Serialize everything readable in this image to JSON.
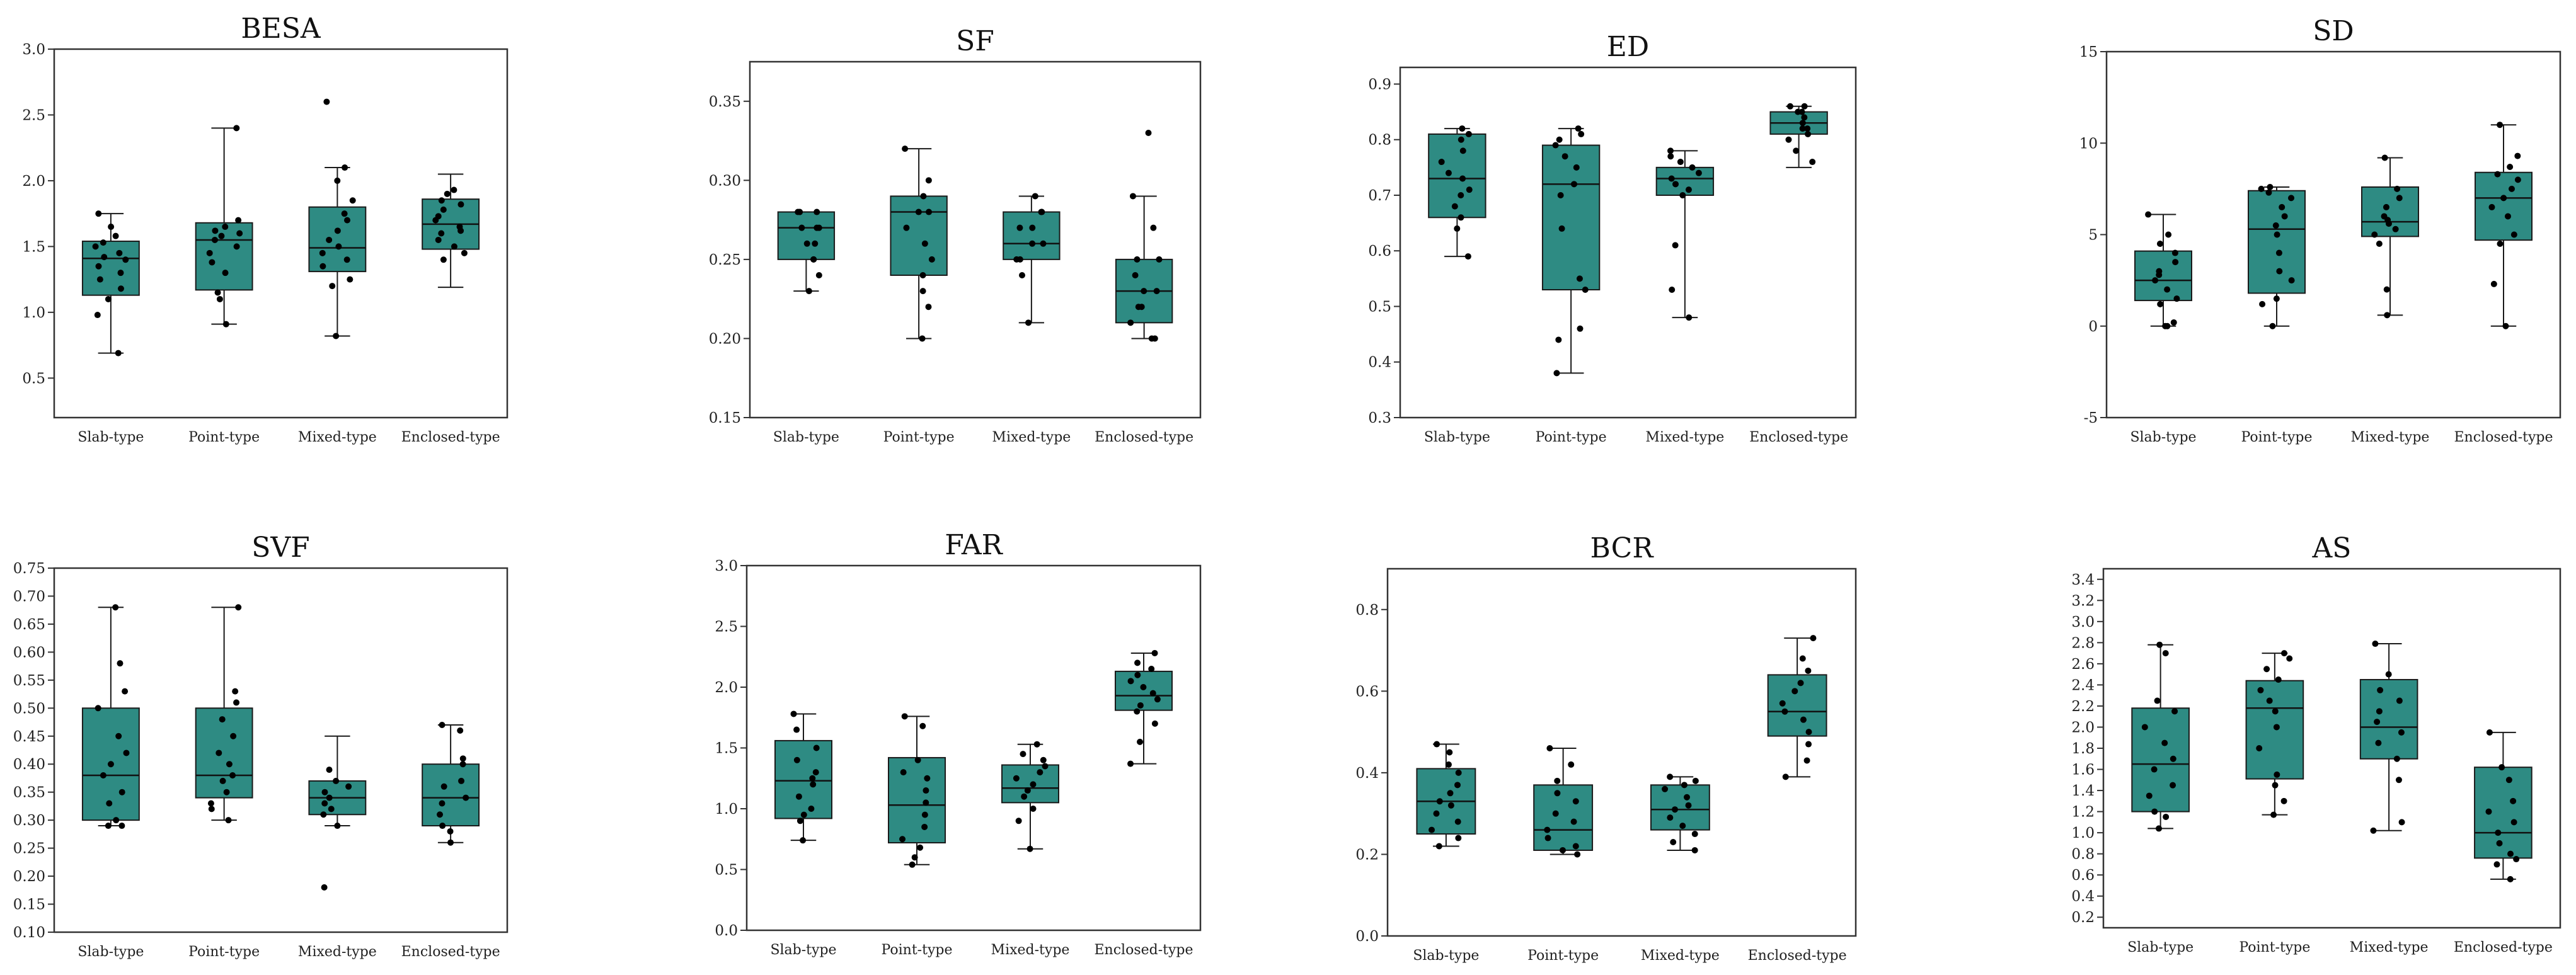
{
  "colors": {
    "box_fill": "#2e8b83",
    "box_stroke": "#1a1a1a",
    "point": "#000000",
    "median": "#111111",
    "frame": "#333333"
  },
  "chart_data": [
    {
      "type": "box",
      "title": "BESA",
      "categories": [
        "Slab-type",
        "Point-type",
        "Mixed-type",
        "Enclosed-type"
      ],
      "ylim": [
        0.2,
        3.0
      ],
      "yticks": [
        "0.5",
        "1.0",
        "1.5",
        "2.0",
        "2.5",
        "3.0"
      ],
      "ytick_values": [
        0.5,
        1.0,
        1.5,
        2.0,
        2.5,
        3.0
      ],
      "boxes": [
        {
          "min": 0.69,
          "q1": 1.13,
          "median": 1.41,
          "q3": 1.54,
          "max": 1.75,
          "points": [
            0.69,
            0.98,
            1.1,
            1.18,
            1.25,
            1.3,
            1.35,
            1.4,
            1.42,
            1.45,
            1.5,
            1.53,
            1.58,
            1.65,
            1.75
          ]
        },
        {
          "min": 0.91,
          "q1": 1.17,
          "median": 1.55,
          "q3": 1.68,
          "max": 2.4,
          "points": [
            0.91,
            1.1,
            1.15,
            1.3,
            1.38,
            1.45,
            1.5,
            1.55,
            1.58,
            1.6,
            1.62,
            1.65,
            1.7,
            2.4
          ]
        },
        {
          "min": 0.82,
          "q1": 1.31,
          "median": 1.49,
          "q3": 1.8,
          "max": 2.1,
          "points": [
            0.82,
            1.2,
            1.25,
            1.35,
            1.4,
            1.45,
            1.5,
            1.55,
            1.62,
            1.7,
            1.75,
            1.85,
            2.0,
            2.1,
            2.6
          ]
        },
        {
          "min": 1.19,
          "q1": 1.48,
          "median": 1.67,
          "q3": 1.86,
          "max": 2.05,
          "points": [
            1.4,
            1.45,
            1.5,
            1.55,
            1.6,
            1.62,
            1.65,
            1.7,
            1.73,
            1.78,
            1.82,
            1.85,
            1.9,
            1.93
          ]
        }
      ]
    },
    {
      "type": "box",
      "title": "SF",
      "categories": [
        "Slab-type",
        "Point-type",
        "Mixed-type",
        "Enclosed-type"
      ],
      "ylim": [
        0.15,
        0.375
      ],
      "yticks": [
        "0.15",
        "0.20",
        "0.25",
        "0.30",
        "0.35"
      ],
      "ytick_values": [
        0.15,
        0.2,
        0.25,
        0.3,
        0.35
      ],
      "boxes": [
        {
          "min": 0.23,
          "q1": 0.25,
          "median": 0.27,
          "q3": 0.28,
          "max": 0.28,
          "points": [
            0.23,
            0.24,
            0.25,
            0.25,
            0.26,
            0.27,
            0.27,
            0.28,
            0.28,
            0.28,
            0.27,
            0.26
          ]
        },
        {
          "min": 0.2,
          "q1": 0.24,
          "median": 0.28,
          "q3": 0.29,
          "max": 0.32,
          "points": [
            0.2,
            0.22,
            0.23,
            0.24,
            0.25,
            0.26,
            0.27,
            0.28,
            0.28,
            0.29,
            0.3,
            0.32
          ]
        },
        {
          "min": 0.21,
          "q1": 0.25,
          "median": 0.26,
          "q3": 0.28,
          "max": 0.29,
          "points": [
            0.21,
            0.24,
            0.25,
            0.25,
            0.26,
            0.26,
            0.27,
            0.27,
            0.28,
            0.28,
            0.29
          ]
        },
        {
          "min": 0.2,
          "q1": 0.21,
          "median": 0.23,
          "q3": 0.25,
          "max": 0.29,
          "points": [
            0.2,
            0.2,
            0.21,
            0.22,
            0.22,
            0.23,
            0.23,
            0.24,
            0.25,
            0.25,
            0.27,
            0.29,
            0.33
          ]
        }
      ]
    },
    {
      "type": "box",
      "title": "ED",
      "categories": [
        "Slab-type",
        "Point-type",
        "Mixed-type",
        "Enclosed-type"
      ],
      "ylim": [
        0.3,
        0.93
      ],
      "yticks": [
        "0.3",
        "0.4",
        "0.5",
        "0.6",
        "0.7",
        "0.8",
        "0.9"
      ],
      "ytick_values": [
        0.3,
        0.4,
        0.5,
        0.6,
        0.7,
        0.8,
        0.9
      ],
      "boxes": [
        {
          "min": 0.59,
          "q1": 0.66,
          "median": 0.73,
          "q3": 0.81,
          "max": 0.82,
          "points": [
            0.59,
            0.64,
            0.66,
            0.68,
            0.7,
            0.71,
            0.73,
            0.74,
            0.76,
            0.78,
            0.8,
            0.81,
            0.82
          ]
        },
        {
          "min": 0.38,
          "q1": 0.53,
          "median": 0.72,
          "q3": 0.79,
          "max": 0.82,
          "points": [
            0.38,
            0.44,
            0.46,
            0.53,
            0.55,
            0.64,
            0.7,
            0.72,
            0.75,
            0.77,
            0.79,
            0.8,
            0.81,
            0.82
          ]
        },
        {
          "min": 0.48,
          "q1": 0.7,
          "median": 0.73,
          "q3": 0.75,
          "max": 0.78,
          "points": [
            0.48,
            0.53,
            0.61,
            0.7,
            0.71,
            0.72,
            0.73,
            0.74,
            0.75,
            0.76,
            0.77,
            0.78
          ]
        },
        {
          "min": 0.75,
          "q1": 0.81,
          "median": 0.83,
          "q3": 0.85,
          "max": 0.86,
          "points": [
            0.76,
            0.78,
            0.8,
            0.81,
            0.82,
            0.82,
            0.83,
            0.84,
            0.85,
            0.85,
            0.86,
            0.86
          ]
        }
      ]
    },
    {
      "type": "box",
      "title": "SD",
      "categories": [
        "Slab-type",
        "Point-type",
        "Mixed-type",
        "Enclosed-type"
      ],
      "ylim": [
        -5,
        15
      ],
      "yticks": [
        "-5",
        "0",
        "5",
        "10",
        "15"
      ],
      "ytick_values": [
        -5,
        0,
        5,
        10,
        15
      ],
      "boxes": [
        {
          "min": 0,
          "q1": 1.4,
          "median": 2.5,
          "q3": 4.1,
          "max": 6.1,
          "points": [
            0,
            0,
            0.2,
            1.2,
            1.5,
            2.0,
            2.5,
            2.8,
            3.0,
            3.5,
            4.0,
            4.5,
            5.0,
            6.1
          ]
        },
        {
          "min": 0,
          "q1": 1.8,
          "median": 5.3,
          "q3": 7.4,
          "max": 7.6,
          "points": [
            0,
            1.2,
            1.5,
            2.5,
            3.0,
            4.0,
            5.0,
            5.5,
            6.0,
            6.5,
            7.0,
            7.3,
            7.5,
            7.6
          ]
        },
        {
          "min": 0.6,
          "q1": 4.9,
          "median": 5.7,
          "q3": 7.6,
          "max": 9.2,
          "points": [
            0.6,
            2.0,
            4.5,
            5.0,
            5.3,
            5.6,
            5.8,
            6.0,
            6.5,
            7.0,
            7.5,
            9.2
          ]
        },
        {
          "min": 0,
          "q1": 4.7,
          "median": 7.0,
          "q3": 8.4,
          "max": 11.0,
          "points": [
            0,
            2.3,
            4.5,
            5.0,
            6.0,
            6.5,
            7.0,
            7.5,
            8.0,
            8.3,
            8.7,
            9.3,
            11.0
          ]
        }
      ]
    },
    {
      "type": "box",
      "title": "SVF",
      "categories": [
        "Slab-type",
        "Point-type",
        "Mixed-type",
        "Enclosed-type"
      ],
      "ylim": [
        0.1,
        0.75
      ],
      "yticks": [
        "0.10",
        "0.15",
        "0.20",
        "0.25",
        "0.30",
        "0.35",
        "0.40",
        "0.45",
        "0.50",
        "0.55",
        "0.60",
        "0.65",
        "0.70",
        "0.75"
      ],
      "ytick_values": [
        0.1,
        0.15,
        0.2,
        0.25,
        0.3,
        0.35,
        0.4,
        0.45,
        0.5,
        0.55,
        0.6,
        0.65,
        0.7,
        0.75
      ],
      "boxes": [
        {
          "min": 0.29,
          "q1": 0.3,
          "median": 0.38,
          "q3": 0.5,
          "max": 0.68,
          "points": [
            0.29,
            0.29,
            0.3,
            0.33,
            0.35,
            0.38,
            0.4,
            0.42,
            0.45,
            0.5,
            0.53,
            0.58,
            0.68
          ]
        },
        {
          "min": 0.3,
          "q1": 0.34,
          "median": 0.38,
          "q3": 0.5,
          "max": 0.68,
          "points": [
            0.3,
            0.32,
            0.33,
            0.35,
            0.37,
            0.38,
            0.4,
            0.42,
            0.45,
            0.48,
            0.51,
            0.53,
            0.68
          ]
        },
        {
          "min": 0.29,
          "q1": 0.31,
          "median": 0.34,
          "q3": 0.37,
          "max": 0.45,
          "points": [
            0.18,
            0.29,
            0.31,
            0.32,
            0.33,
            0.34,
            0.35,
            0.36,
            0.37,
            0.39
          ]
        },
        {
          "min": 0.26,
          "q1": 0.29,
          "median": 0.34,
          "q3": 0.4,
          "max": 0.47,
          "points": [
            0.26,
            0.28,
            0.29,
            0.31,
            0.33,
            0.34,
            0.36,
            0.37,
            0.4,
            0.41,
            0.46,
            0.47
          ]
        }
      ]
    },
    {
      "type": "box",
      "title": "FAR",
      "categories": [
        "Slab-type",
        "Point-type",
        "Mixed-type",
        "Enclosed-type"
      ],
      "ylim": [
        0.0,
        3.0
      ],
      "yticks": [
        "0.0",
        "0.5",
        "1.0",
        "1.5",
        "2.0",
        "2.5",
        "3.0"
      ],
      "ytick_values": [
        0,
        0.5,
        1.0,
        1.5,
        2.0,
        2.5,
        3.0
      ],
      "boxes": [
        {
          "min": 0.74,
          "q1": 0.92,
          "median": 1.23,
          "q3": 1.56,
          "max": 1.78,
          "points": [
            0.74,
            0.9,
            0.95,
            1.0,
            1.1,
            1.2,
            1.25,
            1.3,
            1.4,
            1.5,
            1.65,
            1.78
          ]
        },
        {
          "min": 0.54,
          "q1": 0.72,
          "median": 1.03,
          "q3": 1.42,
          "max": 1.76,
          "points": [
            0.54,
            0.6,
            0.68,
            0.75,
            0.85,
            0.95,
            1.05,
            1.15,
            1.25,
            1.3,
            1.4,
            1.68,
            1.76
          ]
        },
        {
          "min": 0.67,
          "q1": 1.05,
          "median": 1.17,
          "q3": 1.36,
          "max": 1.53,
          "points": [
            0.67,
            0.9,
            1.0,
            1.1,
            1.15,
            1.2,
            1.25,
            1.3,
            1.35,
            1.4,
            1.45,
            1.53
          ]
        },
        {
          "min": 1.37,
          "q1": 1.81,
          "median": 1.93,
          "q3": 2.13,
          "max": 2.28,
          "points": [
            1.37,
            1.55,
            1.7,
            1.8,
            1.85,
            1.9,
            1.95,
            2.0,
            2.05,
            2.1,
            2.15,
            2.2,
            2.28
          ]
        }
      ]
    },
    {
      "type": "box",
      "title": "BCR",
      "categories": [
        "Slab-type",
        "Point-type",
        "Mixed-type",
        "Enclosed-type"
      ],
      "ylim": [
        0.0,
        0.9
      ],
      "yticks": [
        "0.0",
        "0.2",
        "0.4",
        "0.6",
        "0.8"
      ],
      "ytick_values": [
        0,
        0.2,
        0.4,
        0.6,
        0.8
      ],
      "boxes": [
        {
          "min": 0.22,
          "q1": 0.25,
          "median": 0.33,
          "q3": 0.41,
          "max": 0.47,
          "points": [
            0.22,
            0.24,
            0.26,
            0.28,
            0.3,
            0.32,
            0.33,
            0.35,
            0.37,
            0.4,
            0.42,
            0.45,
            0.47
          ]
        },
        {
          "min": 0.2,
          "q1": 0.21,
          "median": 0.26,
          "q3": 0.37,
          "max": 0.46,
          "points": [
            0.2,
            0.21,
            0.22,
            0.24,
            0.26,
            0.28,
            0.3,
            0.33,
            0.35,
            0.38,
            0.42,
            0.46
          ]
        },
        {
          "min": 0.21,
          "q1": 0.26,
          "median": 0.31,
          "q3": 0.37,
          "max": 0.39,
          "points": [
            0.21,
            0.23,
            0.25,
            0.27,
            0.29,
            0.31,
            0.32,
            0.34,
            0.36,
            0.37,
            0.38,
            0.39
          ]
        },
        {
          "min": 0.39,
          "q1": 0.49,
          "median": 0.55,
          "q3": 0.64,
          "max": 0.73,
          "points": [
            0.39,
            0.43,
            0.47,
            0.5,
            0.53,
            0.55,
            0.57,
            0.6,
            0.62,
            0.65,
            0.68,
            0.73
          ]
        }
      ]
    },
    {
      "type": "box",
      "title": "AS",
      "categories": [
        "Slab-type",
        "Point-type",
        "Mixed-type",
        "Enclosed-type"
      ],
      "ylim": [
        0.1,
        3.5
      ],
      "yticks": [
        "0.2",
        "0.4",
        "0.6",
        "0.8",
        "1.0",
        "1.2",
        "1.4",
        "1.6",
        "1.8",
        "2.0",
        "2.2",
        "2.4",
        "2.6",
        "2.8",
        "3.0",
        "3.2",
        "3.4"
      ],
      "ytick_values": [
        0.2,
        0.4,
        0.6,
        0.8,
        1.0,
        1.2,
        1.4,
        1.6,
        1.8,
        2.0,
        2.2,
        2.4,
        2.6,
        2.8,
        3.0,
        3.2,
        3.4
      ],
      "boxes": [
        {
          "min": 1.04,
          "q1": 1.2,
          "median": 1.65,
          "q3": 2.18,
          "max": 2.78,
          "points": [
            1.04,
            1.15,
            1.2,
            1.35,
            1.45,
            1.6,
            1.7,
            1.85,
            2.0,
            2.15,
            2.25,
            2.7,
            2.78
          ]
        },
        {
          "min": 1.17,
          "q1": 1.51,
          "median": 2.18,
          "q3": 2.44,
          "max": 2.7,
          "points": [
            1.17,
            1.3,
            1.45,
            1.55,
            1.8,
            2.0,
            2.15,
            2.25,
            2.35,
            2.45,
            2.55,
            2.65,
            2.7
          ]
        },
        {
          "min": 1.02,
          "q1": 1.7,
          "median": 2.0,
          "q3": 2.45,
          "max": 2.79,
          "points": [
            1.02,
            1.1,
            1.5,
            1.7,
            1.85,
            1.95,
            2.05,
            2.15,
            2.25,
            2.35,
            2.5,
            2.79
          ]
        },
        {
          "min": 0.56,
          "q1": 0.76,
          "median": 1.0,
          "q3": 1.62,
          "max": 1.95,
          "points": [
            0.56,
            0.7,
            0.75,
            0.8,
            0.9,
            1.0,
            1.1,
            1.2,
            1.3,
            1.5,
            1.62,
            1.95
          ]
        }
      ]
    }
  ]
}
